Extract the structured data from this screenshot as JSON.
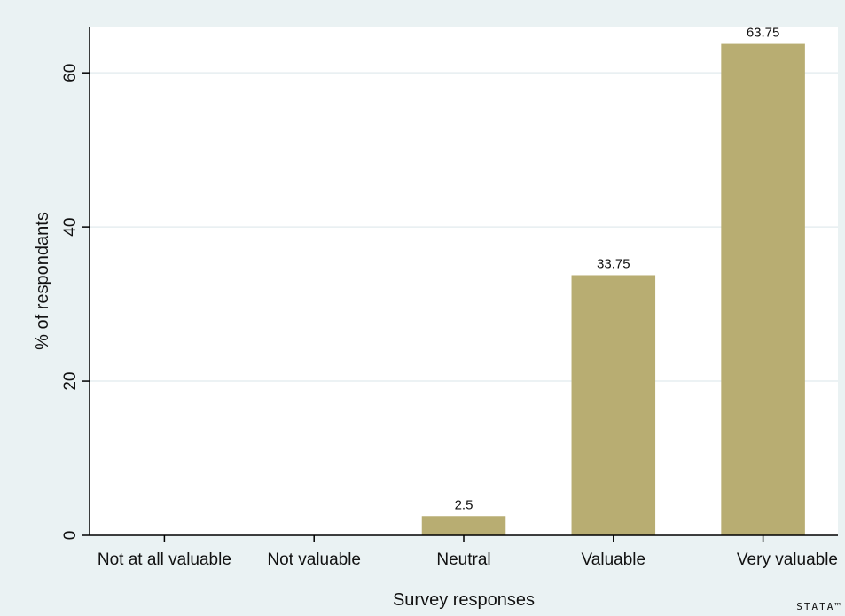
{
  "chart_data": {
    "type": "bar",
    "categories": [
      "Not at all valuable",
      "Not valuable",
      "Neutral",
      "Valuable",
      "Very valuable"
    ],
    "values": [
      0,
      0,
      2.5,
      33.75,
      63.75
    ],
    "data_labels": [
      "",
      "",
      "2.5",
      "33.75",
      "63.75"
    ],
    "xlabel": "Survey responses",
    "ylabel": "% of respondants",
    "ylim": [
      0,
      66
    ],
    "yticks": [
      0,
      20,
      40,
      60
    ],
    "grid": true,
    "bar_color": "#b8ad72",
    "background_color": "#eaf2f3",
    "plot_background_color": "#ffffff"
  },
  "watermark": "STATA™"
}
